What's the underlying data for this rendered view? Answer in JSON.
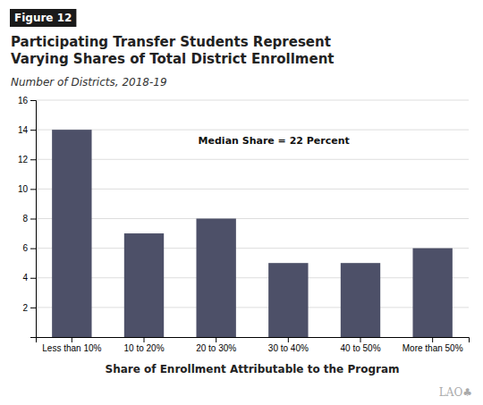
{
  "chart_data": {
    "type": "bar",
    "figure_label": "Figure 12",
    "title": [
      "Participating Transfer Students Represent",
      "Varying Shares of Total District Enrollment"
    ],
    "subtitle": "Number of Districts, 2018-19",
    "x_label": "Share of Enrollment Attributable to the Program",
    "categories": [
      "Less than 10%",
      "10 to 20%",
      "20 to 30%",
      "30 to 40%",
      "40 to 50%",
      "More than 50%"
    ],
    "values": [
      14,
      7,
      8,
      5,
      5,
      6
    ],
    "color": "#4d5068",
    "ylim": [
      0,
      16
    ],
    "yticks": [
      2,
      4,
      6,
      8,
      10,
      12,
      14,
      16
    ],
    "grid": true,
    "annotations": [
      {
        "text": "Median Share = 22 Percent",
        "x": 2.8,
        "y": 13.2
      }
    ],
    "logo": "LAO♣"
  }
}
